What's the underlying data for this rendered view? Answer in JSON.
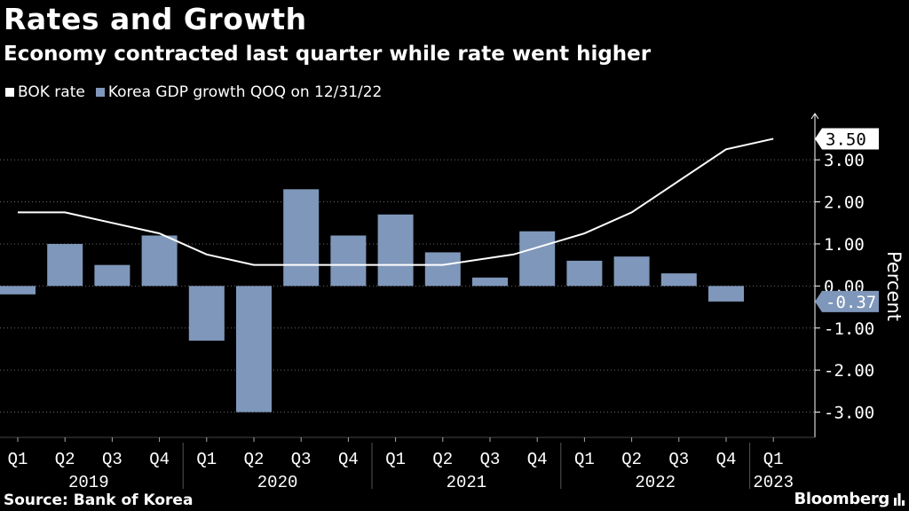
{
  "header": {
    "title": "Rates and Growth",
    "subtitle": "Economy contracted last quarter while rate went higher"
  },
  "footer": {
    "source": "Source: Bank of Korea",
    "brand": "Bloomberg"
  },
  "colors": {
    "background": "#000000",
    "bar": "#7f97ba",
    "line": "#ffffff",
    "axis": "#ffffff"
  },
  "chart_data": {
    "type": "bar",
    "title": "Rates and Growth",
    "subtitle": "Economy contracted last quarter while rate went higher",
    "ylabel": "Percent",
    "xlabel": "",
    "ylim": [
      -3.6,
      4.1
    ],
    "yticks": [
      3.0,
      2.0,
      1.0,
      0.0,
      -1.0,
      -2.0,
      -3.0
    ],
    "ytick_labels": [
      "3.00",
      "2.00",
      "1.00",
      "0.00",
      "-1.00",
      "-2.00",
      "-3.00"
    ],
    "categories": [
      "Q1",
      "Q2",
      "Q3",
      "Q4",
      "Q1",
      "Q2",
      "Q3",
      "Q4",
      "Q1",
      "Q2",
      "Q3",
      "Q4",
      "Q1",
      "Q2",
      "Q3",
      "Q4",
      "Q1"
    ],
    "years": [
      {
        "label": "2019",
        "start": 0,
        "end": 3
      },
      {
        "label": "2020",
        "start": 4,
        "end": 7
      },
      {
        "label": "2021",
        "start": 8,
        "end": 11
      },
      {
        "label": "2022",
        "start": 12,
        "end": 15
      },
      {
        "label": "2023",
        "start": 16,
        "end": 16
      }
    ],
    "series": [
      {
        "name": "Korea GDP growth QOQ on 12/31/22",
        "kind": "bar",
        "color": "#7f97ba",
        "values": [
          -0.2,
          1.0,
          0.5,
          1.2,
          -1.3,
          -3.0,
          2.3,
          1.2,
          1.7,
          0.8,
          0.2,
          1.3,
          0.6,
          0.7,
          0.3,
          -0.37,
          null
        ]
      },
      {
        "name": "BOK rate",
        "kind": "line",
        "color": "#ffffff",
        "points": [
          [
            0.0,
            1.75
          ],
          [
            1.0,
            1.75
          ],
          [
            3.0,
            1.25
          ],
          [
            4.0,
            0.75
          ],
          [
            5.0,
            0.5
          ],
          [
            9.0,
            0.5
          ],
          [
            10.5,
            0.75
          ],
          [
            12.0,
            1.25
          ],
          [
            13.0,
            1.75
          ],
          [
            15.0,
            3.25
          ],
          [
            16.0,
            3.5
          ]
        ]
      }
    ],
    "callouts": [
      {
        "label": "3.50",
        "value": 3.5,
        "style": "white"
      },
      {
        "label": "-0.37",
        "value": -0.37,
        "style": "blue"
      }
    ]
  }
}
